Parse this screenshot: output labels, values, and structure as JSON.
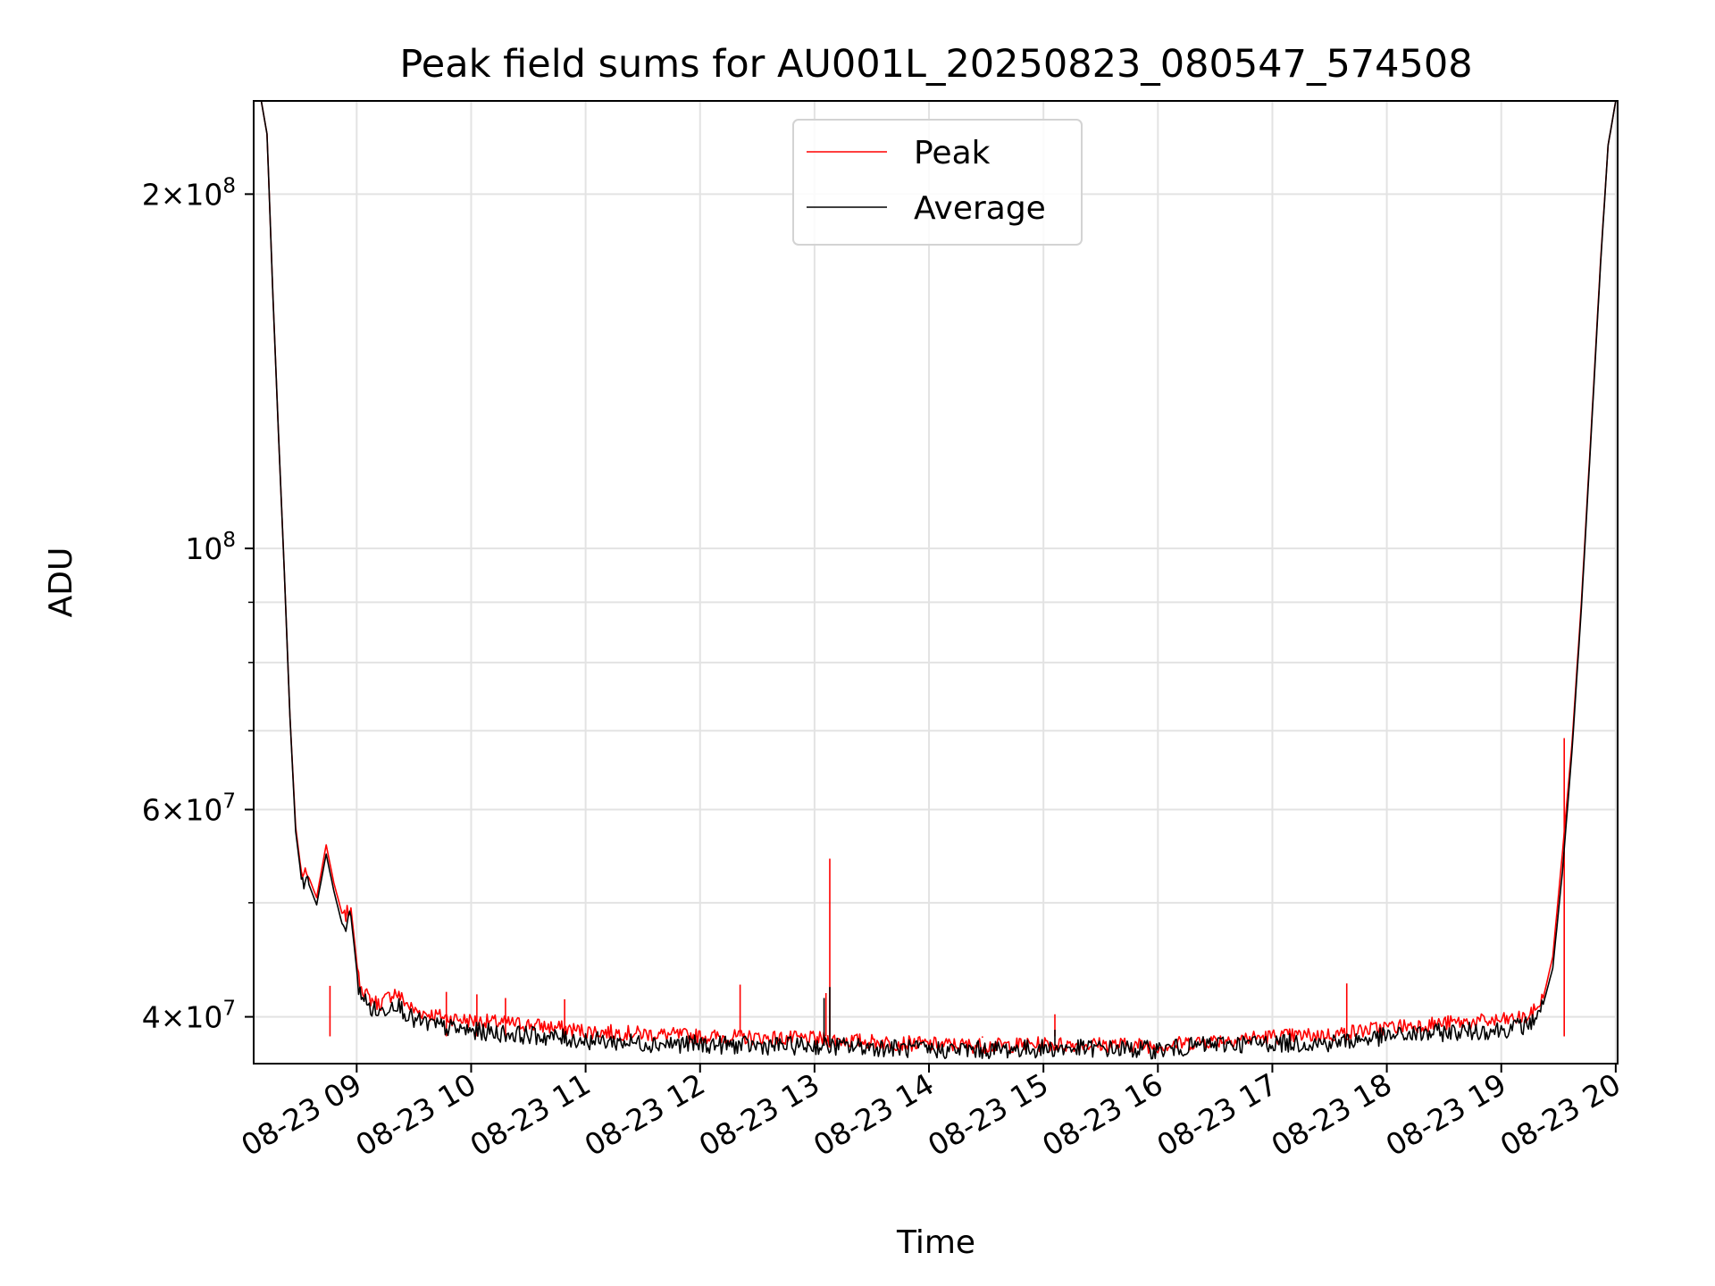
{
  "chart_data": {
    "type": "line",
    "title": "Peak field sums for AU001L_20250823_080547_574508",
    "xlabel": "Time",
    "ylabel": "ADU",
    "yscale": "log",
    "ylim": [
      36500000,
      240000000
    ],
    "xlim": [
      "2025-08-23 08:06",
      "2025-08-23 20:01"
    ],
    "grid": true,
    "legend_position": "top-center",
    "x_ticks": [
      "08-23 09",
      "08-23 10",
      "08-23 11",
      "08-23 12",
      "08-23 13",
      "08-23 14",
      "08-23 15",
      "08-23 16",
      "08-23 17",
      "08-23 18",
      "08-23 19",
      "08-23 20"
    ],
    "y_ticks": [
      {
        "value": 40000000,
        "mantissa": "4",
        "exponent": "7"
      },
      {
        "value": 60000000,
        "mantissa": "6",
        "exponent": "7"
      },
      {
        "value": 100000000,
        "mantissa": "",
        "exponent": "8"
      },
      {
        "value": 200000000,
        "mantissa": "2",
        "exponent": "8"
      }
    ],
    "series": [
      {
        "name": "Peak",
        "color": "#ff0000",
        "points": [
          [
            "2025-08-23 08:10",
            240000000
          ],
          [
            "2025-08-23 08:13",
            225000000
          ],
          [
            "2025-08-23 08:16",
            165000000
          ],
          [
            "2025-08-23 08:19",
            125000000
          ],
          [
            "2025-08-23 08:22",
            96000000
          ],
          [
            "2025-08-23 08:25",
            72000000
          ],
          [
            "2025-08-23 08:28",
            58000000
          ],
          [
            "2025-08-23 08:31",
            53000000
          ],
          [
            "2025-08-23 08:35",
            52500000
          ],
          [
            "2025-08-23 08:39",
            50500000
          ],
          [
            "2025-08-23 08:44",
            56000000
          ],
          [
            "2025-08-23 08:48",
            52000000
          ],
          [
            "2025-08-23 08:53",
            48500000
          ],
          [
            "2025-08-23 08:57",
            49500000
          ],
          [
            "2025-08-23 09:01",
            43000000
          ],
          [
            "2025-08-23 09:06",
            41500000
          ],
          [
            "2025-08-23 09:12",
            41000000
          ],
          [
            "2025-08-23 09:20",
            42000000
          ],
          [
            "2025-08-23 09:30",
            40500000
          ],
          [
            "2025-08-23 09:45",
            40000000
          ],
          [
            "2025-08-23 10:00",
            39700000
          ],
          [
            "2025-08-23 10:30",
            39400000
          ],
          [
            "2025-08-23 11:00",
            38900000
          ],
          [
            "2025-08-23 11:30",
            38700000
          ],
          [
            "2025-08-23 12:00",
            38500000
          ],
          [
            "2025-08-23 12:30",
            38400000
          ],
          [
            "2025-08-23 13:00",
            38300000
          ],
          [
            "2025-08-23 13:30",
            38100000
          ],
          [
            "2025-08-23 14:00",
            37900000
          ],
          [
            "2025-08-23 14:30",
            37800000
          ],
          [
            "2025-08-23 15:00",
            37900000
          ],
          [
            "2025-08-23 15:30",
            37900000
          ],
          [
            "2025-08-23 16:00",
            37800000
          ],
          [
            "2025-08-23 16:30",
            38200000
          ],
          [
            "2025-08-23 17:00",
            38500000
          ],
          [
            "2025-08-23 17:30",
            38600000
          ],
          [
            "2025-08-23 18:00",
            39200000
          ],
          [
            "2025-08-23 18:30",
            39500000
          ],
          [
            "2025-08-23 19:00",
            39700000
          ],
          [
            "2025-08-23 19:15",
            40000000
          ],
          [
            "2025-08-23 19:22",
            41500000
          ],
          [
            "2025-08-23 19:27",
            45000000
          ],
          [
            "2025-08-23 19:32",
            55000000
          ],
          [
            "2025-08-23 19:37",
            68000000
          ],
          [
            "2025-08-23 19:42",
            90000000
          ],
          [
            "2025-08-23 19:47",
            125000000
          ],
          [
            "2025-08-23 19:52",
            175000000
          ],
          [
            "2025-08-23 19:56",
            220000000
          ],
          [
            "2025-08-23 20:00",
            240000000
          ]
        ],
        "spikes": [
          [
            "2025-08-23 08:46",
            42500000
          ],
          [
            "2025-08-23 09:47",
            42000000
          ],
          [
            "2025-08-23 10:03",
            41800000
          ],
          [
            "2025-08-23 10:18",
            41500000
          ],
          [
            "2025-08-23 10:49",
            41400000
          ],
          [
            "2025-08-23 12:21",
            42600000
          ],
          [
            "2025-08-23 13:06",
            41900000
          ],
          [
            "2025-08-23 13:08",
            54500000
          ],
          [
            "2025-08-23 14:28",
            38400000
          ],
          [
            "2025-08-23 15:06",
            40200000
          ],
          [
            "2025-08-23 17:39",
            42700000
          ],
          [
            "2025-08-23 19:33",
            69000000
          ]
        ]
      },
      {
        "name": "Average",
        "color": "#000000",
        "points": [
          [
            "2025-08-23 08:10",
            240000000
          ],
          [
            "2025-08-23 08:13",
            225000000
          ],
          [
            "2025-08-23 08:16",
            165000000
          ],
          [
            "2025-08-23 08:19",
            125000000
          ],
          [
            "2025-08-23 08:22",
            96000000
          ],
          [
            "2025-08-23 08:25",
            72000000
          ],
          [
            "2025-08-23 08:28",
            57500000
          ],
          [
            "2025-08-23 08:31",
            52500000
          ],
          [
            "2025-08-23 08:35",
            51800000
          ],
          [
            "2025-08-23 08:39",
            49800000
          ],
          [
            "2025-08-23 08:44",
            55000000
          ],
          [
            "2025-08-23 08:48",
            51200000
          ],
          [
            "2025-08-23 08:53",
            47500000
          ],
          [
            "2025-08-23 08:57",
            48700000
          ],
          [
            "2025-08-23 09:01",
            42400000
          ],
          [
            "2025-08-23 09:06",
            40800000
          ],
          [
            "2025-08-23 09:12",
            40300000
          ],
          [
            "2025-08-23 09:20",
            41200000
          ],
          [
            "2025-08-23 09:30",
            39700000
          ],
          [
            "2025-08-23 09:45",
            39200000
          ],
          [
            "2025-08-23 10:00",
            38900000
          ],
          [
            "2025-08-23 10:30",
            38600000
          ],
          [
            "2025-08-23 11:00",
            38200000
          ],
          [
            "2025-08-23 11:30",
            38000000
          ],
          [
            "2025-08-23 12:00",
            37900000
          ],
          [
            "2025-08-23 12:30",
            37800000
          ],
          [
            "2025-08-23 13:00",
            37800000
          ],
          [
            "2025-08-23 13:30",
            37700000
          ],
          [
            "2025-08-23 14:00",
            37500000
          ],
          [
            "2025-08-23 14:30",
            37500000
          ],
          [
            "2025-08-23 15:00",
            37600000
          ],
          [
            "2025-08-23 15:30",
            37600000
          ],
          [
            "2025-08-23 16:00",
            37500000
          ],
          [
            "2025-08-23 16:30",
            37900000
          ],
          [
            "2025-08-23 17:00",
            38000000
          ],
          [
            "2025-08-23 17:30",
            38000000
          ],
          [
            "2025-08-23 18:00",
            38500000
          ],
          [
            "2025-08-23 18:30",
            38800000
          ],
          [
            "2025-08-23 19:00",
            39000000
          ],
          [
            "2025-08-23 19:15",
            39400000
          ],
          [
            "2025-08-23 19:22",
            41000000
          ],
          [
            "2025-08-23 19:27",
            44000000
          ],
          [
            "2025-08-23 19:32",
            53000000
          ],
          [
            "2025-08-23 19:37",
            67000000
          ],
          [
            "2025-08-23 19:42",
            89000000
          ],
          [
            "2025-08-23 19:47",
            124000000
          ],
          [
            "2025-08-23 19:52",
            174000000
          ],
          [
            "2025-08-23 19:56",
            220000000
          ],
          [
            "2025-08-23 20:00",
            240000000
          ]
        ],
        "spikes": [
          [
            "2025-08-23 13:05",
            41500000
          ],
          [
            "2025-08-23 13:08",
            42400000
          ],
          [
            "2025-08-23 15:06",
            39000000
          ]
        ]
      }
    ]
  }
}
